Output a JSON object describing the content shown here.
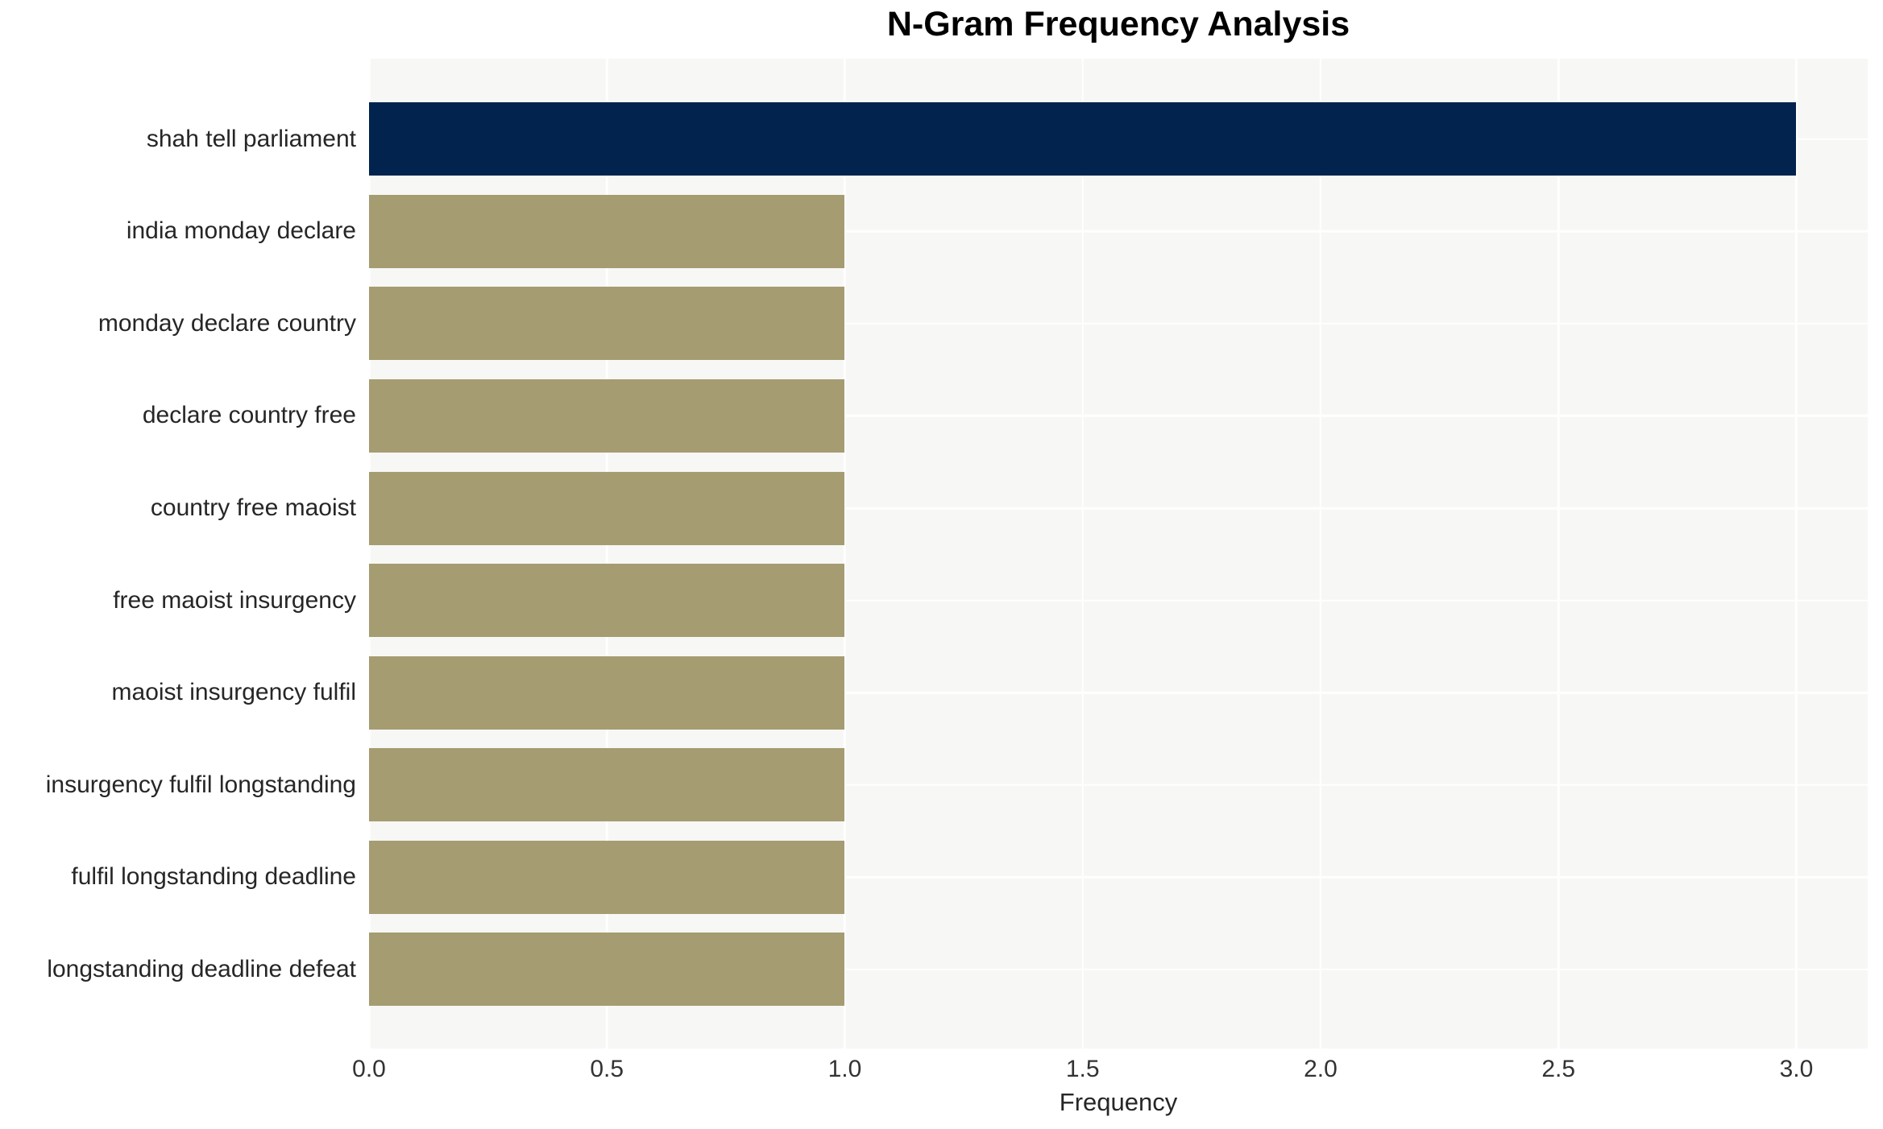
{
  "chart_data": {
    "type": "bar",
    "orientation": "horizontal",
    "title": "N-Gram Frequency Analysis",
    "xlabel": "Frequency",
    "ylabel": "",
    "categories": [
      "shah tell parliament",
      "india monday declare",
      "monday declare country",
      "declare country free",
      "country free maoist",
      "free maoist insurgency",
      "maoist insurgency fulfil",
      "insurgency fulfil longstanding",
      "fulfil longstanding deadline",
      "longstanding deadline defeat"
    ],
    "values": [
      3,
      1,
      1,
      1,
      1,
      1,
      1,
      1,
      1,
      1
    ],
    "bar_colors": [
      "#02234d",
      "#a59c71",
      "#a59c71",
      "#a59c71",
      "#a59c71",
      "#a59c71",
      "#a59c71",
      "#a59c71",
      "#a59c71",
      "#a59c71"
    ],
    "xticks": [
      "0.0",
      "0.5",
      "1.0",
      "1.5",
      "2.0",
      "2.5",
      "3.0"
    ],
    "xtick_values": [
      0,
      0.5,
      1,
      1.5,
      2,
      2.5,
      3
    ],
    "xlim": [
      0,
      3.15
    ],
    "grid": true,
    "legend": null,
    "colors": {
      "highlight_bar": "#02234d",
      "default_bar": "#a59c71",
      "plot_background": "#f7f7f5",
      "gridline": "#ffffff",
      "title_text": "#000000",
      "label_text": "#262626",
      "tick_text": "#333333",
      "page_background": "#ffffff"
    }
  }
}
